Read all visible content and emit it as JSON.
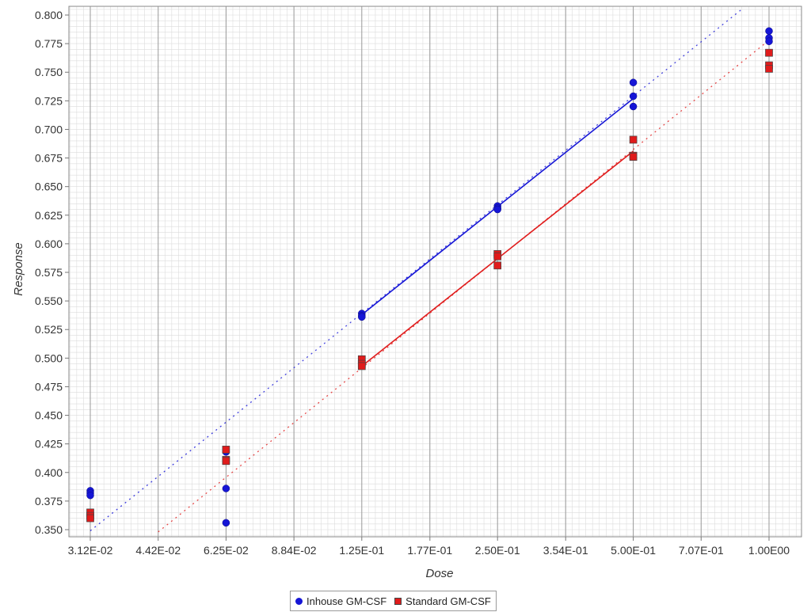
{
  "chart_data": {
    "type": "scatter",
    "xlabel": "Dose",
    "ylabel": "Response",
    "x_scale": "log2",
    "xlim": [
      0.03125,
      1.0
    ],
    "ylim": [
      0.345,
      0.805
    ],
    "x_ticks": [
      {
        "value": 0.03125,
        "label": "3.12E-02"
      },
      {
        "value": 0.0442,
        "label": "4.42E-02"
      },
      {
        "value": 0.0625,
        "label": "6.25E-02"
      },
      {
        "value": 0.0884,
        "label": "8.84E-02"
      },
      {
        "value": 0.125,
        "label": "1.25E-01"
      },
      {
        "value": 0.177,
        "label": "1.77E-01"
      },
      {
        "value": 0.25,
        "label": "2.50E-01"
      },
      {
        "value": 0.354,
        "label": "3.54E-01"
      },
      {
        "value": 0.5,
        "label": "5.00E-01"
      },
      {
        "value": 0.707,
        "label": "7.07E-01"
      },
      {
        "value": 1.0,
        "label": "1.00E00"
      }
    ],
    "y_ticks": [
      {
        "value": 0.35,
        "label": "0.350"
      },
      {
        "value": 0.375,
        "label": "0.375"
      },
      {
        "value": 0.4,
        "label": "0.400"
      },
      {
        "value": 0.425,
        "label": "0.425"
      },
      {
        "value": 0.45,
        "label": "0.450"
      },
      {
        "value": 0.475,
        "label": "0.475"
      },
      {
        "value": 0.5,
        "label": "0.500"
      },
      {
        "value": 0.525,
        "label": "0.525"
      },
      {
        "value": 0.55,
        "label": "0.550"
      },
      {
        "value": 0.575,
        "label": "0.575"
      },
      {
        "value": 0.6,
        "label": "0.600"
      },
      {
        "value": 0.625,
        "label": "0.625"
      },
      {
        "value": 0.65,
        "label": "0.650"
      },
      {
        "value": 0.675,
        "label": "0.675"
      },
      {
        "value": 0.7,
        "label": "0.700"
      },
      {
        "value": 0.725,
        "label": "0.725"
      },
      {
        "value": 0.75,
        "label": "0.750"
      },
      {
        "value": 0.775,
        "label": "0.775"
      },
      {
        "value": 0.8,
        "label": "0.800"
      }
    ],
    "grid": true,
    "legend_position": "bottom-center",
    "series": [
      {
        "name": "Inhouse GM-CSF",
        "color": "#1515d6",
        "marker": "circle",
        "points": [
          {
            "x": 0.03125,
            "y": 0.384
          },
          {
            "x": 0.03125,
            "y": 0.382
          },
          {
            "x": 0.03125,
            "y": 0.38
          },
          {
            "x": 0.0625,
            "y": 0.418
          },
          {
            "x": 0.0625,
            "y": 0.386
          },
          {
            "x": 0.0625,
            "y": 0.356
          },
          {
            "x": 0.125,
            "y": 0.539
          },
          {
            "x": 0.125,
            "y": 0.537
          },
          {
            "x": 0.125,
            "y": 0.536
          },
          {
            "x": 0.25,
            "y": 0.633
          },
          {
            "x": 0.25,
            "y": 0.631
          },
          {
            "x": 0.25,
            "y": 0.63
          },
          {
            "x": 0.5,
            "y": 0.741
          },
          {
            "x": 0.5,
            "y": 0.729
          },
          {
            "x": 0.5,
            "y": 0.72
          },
          {
            "x": 1.0,
            "y": 0.786
          },
          {
            "x": 1.0,
            "y": 0.78
          },
          {
            "x": 1.0,
            "y": 0.777
          }
        ],
        "fit": {
          "solid_from_x": 0.125,
          "solid_to_x": 0.5,
          "from": {
            "x": 0.03125,
            "y": 0.349
          },
          "to": {
            "x": 0.87,
            "y": 0.805
          },
          "solid_from_y": 0.538,
          "solid_to_y": 0.727
        }
      },
      {
        "name": "Standard GM-CSF",
        "color": "#e01b1b",
        "marker": "square",
        "points": [
          {
            "x": 0.03125,
            "y": 0.365
          },
          {
            "x": 0.03125,
            "y": 0.362
          },
          {
            "x": 0.03125,
            "y": 0.36
          },
          {
            "x": 0.0625,
            "y": 0.42
          },
          {
            "x": 0.0625,
            "y": 0.411
          },
          {
            "x": 0.0625,
            "y": 0.41
          },
          {
            "x": 0.125,
            "y": 0.499
          },
          {
            "x": 0.125,
            "y": 0.495
          },
          {
            "x": 0.125,
            "y": 0.493
          },
          {
            "x": 0.25,
            "y": 0.591
          },
          {
            "x": 0.25,
            "y": 0.589
          },
          {
            "x": 0.25,
            "y": 0.581
          },
          {
            "x": 0.5,
            "y": 0.691
          },
          {
            "x": 0.5,
            "y": 0.677
          },
          {
            "x": 0.5,
            "y": 0.676
          },
          {
            "x": 1.0,
            "y": 0.767
          },
          {
            "x": 1.0,
            "y": 0.756
          },
          {
            "x": 1.0,
            "y": 0.753
          }
        ],
        "fit": {
          "solid_from_x": 0.125,
          "solid_to_x": 0.5,
          "from": {
            "x": 0.0442,
            "y": 0.348
          },
          "to": {
            "x": 1.0,
            "y": 0.778
          },
          "solid_from_y": 0.493,
          "solid_to_y": 0.681
        }
      }
    ]
  }
}
